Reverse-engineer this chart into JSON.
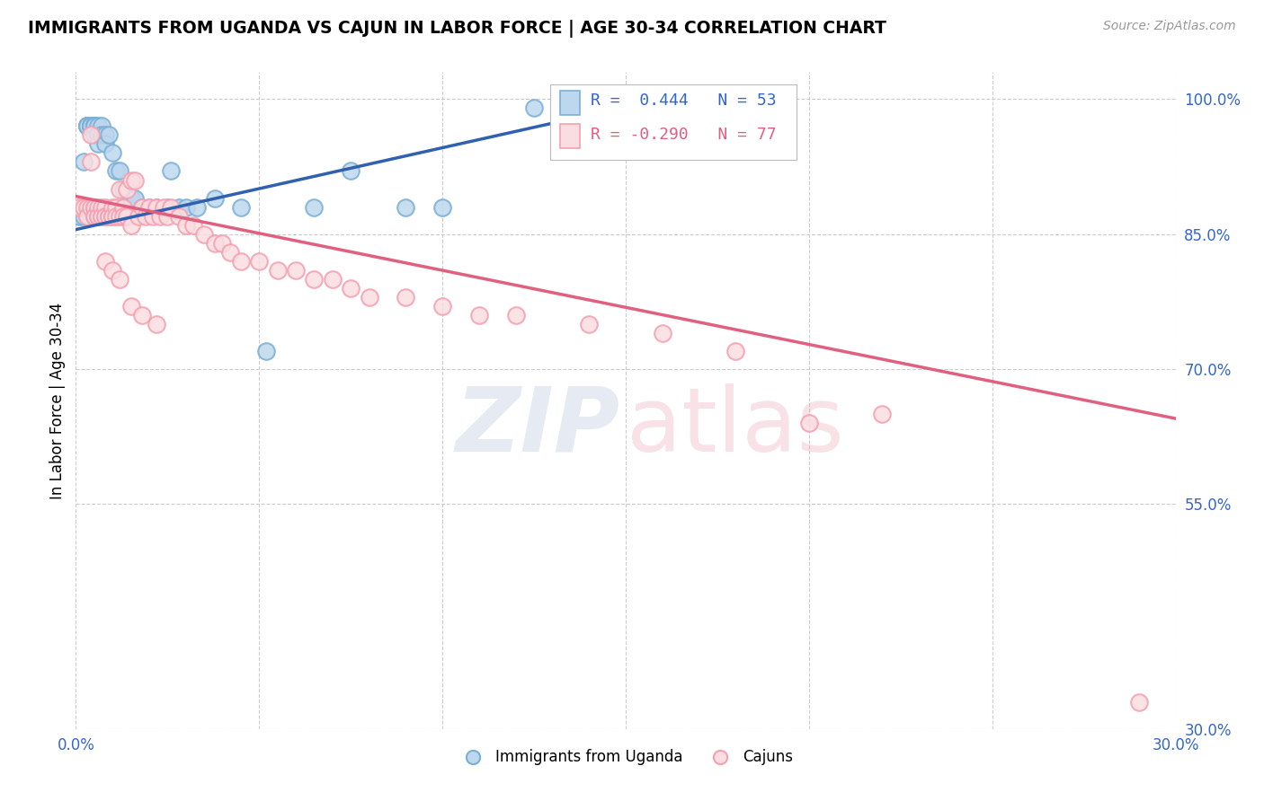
{
  "title": "IMMIGRANTS FROM UGANDA VS CAJUN IN LABOR FORCE | AGE 30-34 CORRELATION CHART",
  "source": "Source: ZipAtlas.com",
  "ylabel": "In Labor Force | Age 30-34",
  "xmin": 0.0,
  "xmax": 0.3,
  "ymin": 0.3,
  "ymax": 1.03,
  "legend_r_blue": "R =  0.444",
  "legend_n_blue": "N = 53",
  "legend_r_pink": "R = -0.290",
  "legend_n_pink": "N = 77",
  "blue_color": "#7BAFD4",
  "pink_color": "#F4A0B0",
  "blue_fill": "#BDD7EE",
  "pink_fill": "#FADDE1",
  "blue_line_color": "#3060B0",
  "pink_line_color": "#E06080",
  "blue_scatter_x": [
    0.001,
    0.002,
    0.002,
    0.003,
    0.003,
    0.003,
    0.003,
    0.003,
    0.004,
    0.004,
    0.004,
    0.004,
    0.004,
    0.005,
    0.005,
    0.005,
    0.005,
    0.005,
    0.005,
    0.005,
    0.005,
    0.006,
    0.006,
    0.006,
    0.006,
    0.007,
    0.007,
    0.008,
    0.008,
    0.009,
    0.01,
    0.011,
    0.012,
    0.013,
    0.015,
    0.016,
    0.018,
    0.02,
    0.022,
    0.025,
    0.026,
    0.028,
    0.03,
    0.033,
    0.038,
    0.045,
    0.052,
    0.065,
    0.075,
    0.09,
    0.1,
    0.125,
    0.165
  ],
  "blue_scatter_y": [
    0.87,
    0.93,
    0.87,
    0.97,
    0.97,
    0.97,
    0.97,
    0.97,
    0.97,
    0.97,
    0.97,
    0.97,
    0.97,
    0.97,
    0.97,
    0.97,
    0.97,
    0.97,
    0.97,
    0.96,
    0.97,
    0.96,
    0.97,
    0.96,
    0.95,
    0.97,
    0.96,
    0.96,
    0.95,
    0.96,
    0.94,
    0.92,
    0.92,
    0.9,
    0.89,
    0.89,
    0.88,
    0.88,
    0.88,
    0.88,
    0.92,
    0.88,
    0.88,
    0.88,
    0.89,
    0.88,
    0.72,
    0.88,
    0.92,
    0.88,
    0.88,
    0.99,
    0.99
  ],
  "pink_scatter_x": [
    0.001,
    0.002,
    0.003,
    0.003,
    0.004,
    0.004,
    0.004,
    0.005,
    0.005,
    0.005,
    0.005,
    0.006,
    0.006,
    0.006,
    0.007,
    0.007,
    0.007,
    0.008,
    0.008,
    0.008,
    0.009,
    0.009,
    0.01,
    0.01,
    0.01,
    0.011,
    0.011,
    0.012,
    0.012,
    0.013,
    0.013,
    0.014,
    0.014,
    0.015,
    0.015,
    0.016,
    0.017,
    0.018,
    0.019,
    0.02,
    0.021,
    0.022,
    0.023,
    0.024,
    0.025,
    0.026,
    0.028,
    0.03,
    0.032,
    0.035,
    0.038,
    0.04,
    0.042,
    0.045,
    0.05,
    0.055,
    0.06,
    0.065,
    0.07,
    0.075,
    0.08,
    0.09,
    0.1,
    0.11,
    0.12,
    0.14,
    0.16,
    0.18,
    0.2,
    0.22,
    0.008,
    0.01,
    0.012,
    0.015,
    0.018,
    0.022,
    0.29
  ],
  "pink_scatter_y": [
    0.88,
    0.88,
    0.88,
    0.87,
    0.96,
    0.93,
    0.88,
    0.88,
    0.88,
    0.87,
    0.87,
    0.88,
    0.87,
    0.87,
    0.88,
    0.87,
    0.87,
    0.88,
    0.87,
    0.87,
    0.87,
    0.87,
    0.88,
    0.87,
    0.87,
    0.88,
    0.87,
    0.9,
    0.87,
    0.88,
    0.87,
    0.9,
    0.87,
    0.91,
    0.86,
    0.91,
    0.87,
    0.88,
    0.87,
    0.88,
    0.87,
    0.88,
    0.87,
    0.88,
    0.87,
    0.88,
    0.87,
    0.86,
    0.86,
    0.85,
    0.84,
    0.84,
    0.83,
    0.82,
    0.82,
    0.81,
    0.81,
    0.8,
    0.8,
    0.79,
    0.78,
    0.78,
    0.77,
    0.76,
    0.76,
    0.75,
    0.74,
    0.72,
    0.64,
    0.65,
    0.82,
    0.81,
    0.8,
    0.77,
    0.76,
    0.75,
    0.33
  ],
  "blue_line_x": [
    0.0,
    0.165
  ],
  "blue_line_y": [
    0.855,
    1.005
  ],
  "pink_line_x": [
    0.0,
    0.3
  ],
  "pink_line_y": [
    0.892,
    0.645
  ],
  "ytick_pos": [
    1.0,
    0.85,
    0.7,
    0.55,
    0.3
  ],
  "ytick_labels": [
    "100.0%",
    "85.0%",
    "70.0%",
    "55.0%",
    "30.0%"
  ],
  "xtick_positions": [
    0.0,
    0.05,
    0.1,
    0.15,
    0.2,
    0.25,
    0.3
  ],
  "xtick_labels": [
    "0.0%",
    "",
    "",
    "",
    "",
    "",
    "30.0%"
  ]
}
